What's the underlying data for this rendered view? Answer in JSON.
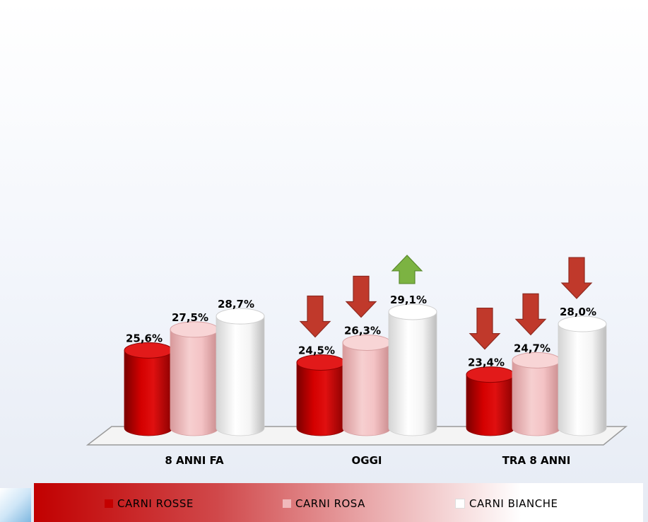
{
  "chart_data": {
    "type": "bar",
    "categories": [
      "8 ANNI FA",
      "OGGI",
      "TRA 8 ANNI"
    ],
    "series": [
      {
        "name": "CARNI ROSSE",
        "values": [
          25.6,
          24.5,
          23.4
        ],
        "labels": [
          "25,6%",
          "24,5%",
          "23,4%"
        ],
        "color": "#c40000"
      },
      {
        "name": "CARNI ROSA",
        "values": [
          27.5,
          26.3,
          24.7
        ],
        "labels": [
          "27,5%",
          "26,3%",
          "24,7%"
        ],
        "color": "#f0b9bb"
      },
      {
        "name": "CARNI BIANCHE",
        "values": [
          28.7,
          29.1,
          28.0
        ],
        "labels": [
          "28,7%",
          "29,1%",
          "28,0%"
        ],
        "color": "#ffffff"
      }
    ],
    "trend_arrows": [
      {
        "category": "OGGI",
        "series": "CARNI ROSSE",
        "direction": "down",
        "color": "#c0392b"
      },
      {
        "category": "OGGI",
        "series": "CARNI ROSA",
        "direction": "down",
        "color": "#c0392b"
      },
      {
        "category": "OGGI",
        "series": "CARNI BIANCHE",
        "direction": "up",
        "color": "#7cb342"
      },
      {
        "category": "TRA 8 ANNI",
        "series": "CARNI ROSSE",
        "direction": "down",
        "color": "#c0392b"
      },
      {
        "category": "TRA 8 ANNI",
        "series": "CARNI ROSA",
        "direction": "down",
        "color": "#c0392b"
      },
      {
        "category": "TRA 8 ANNI",
        "series": "CARNI BIANCHE",
        "direction": "down",
        "color": "#c0392b"
      }
    ],
    "title": "",
    "xlabel": "",
    "ylabel": "",
    "ylim": [
      0,
      32
    ],
    "grid": false,
    "legend": "bottom"
  }
}
